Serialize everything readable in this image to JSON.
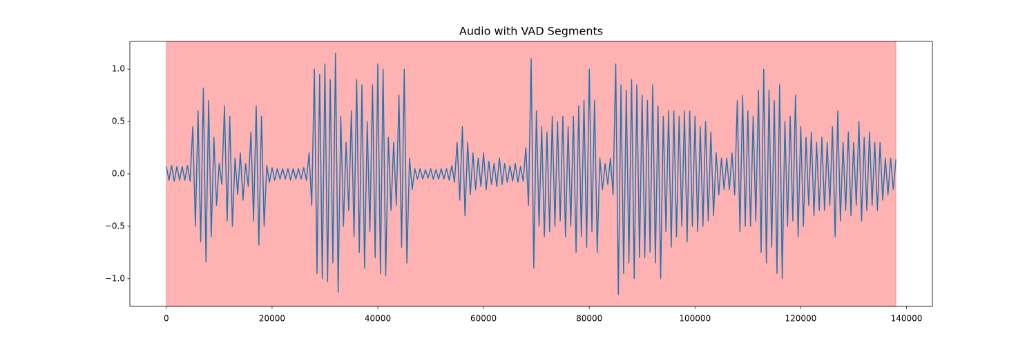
{
  "chart_data": {
    "type": "line",
    "title": "Audio with VAD Segments",
    "xlim": [
      -6900,
      144900
    ],
    "ylim": [
      -1.265,
      1.265
    ],
    "xticks": [
      0,
      20000,
      40000,
      60000,
      80000,
      100000,
      120000,
      140000
    ],
    "yticks": [
      {
        "value": -1.0,
        "label": "−1.0"
      },
      {
        "value": -0.5,
        "label": "−0.5"
      },
      {
        "value": 0.0,
        "label": "0.0"
      },
      0.5,
      {
        "value": 1.0,
        "label": "1.0"
      }
    ],
    "highlight": {
      "xmin": 0,
      "xmax": 138000,
      "color": "#ff0000",
      "alpha": 0.3
    },
    "x": [
      0,
      500,
      1000,
      1500,
      2000,
      2500,
      3000,
      3500,
      4000,
      4500,
      5000,
      5500,
      6000,
      6500,
      7000,
      7500,
      8000,
      8500,
      9000,
      9500,
      10000,
      10500,
      11000,
      11500,
      12000,
      12500,
      13000,
      13500,
      14000,
      14500,
      15000,
      15500,
      16000,
      16500,
      17000,
      17500,
      18000,
      18500,
      19000,
      19500,
      20000,
      20500,
      21000,
      21500,
      22000,
      22500,
      23000,
      23500,
      24000,
      24500,
      25000,
      25500,
      26000,
      26500,
      27000,
      27500,
      28000,
      28500,
      29000,
      29500,
      30000,
      30500,
      31000,
      31500,
      32000,
      32500,
      33000,
      33500,
      34000,
      34500,
      35000,
      35500,
      36000,
      36500,
      37000,
      37500,
      38000,
      38500,
      39000,
      39500,
      40000,
      40500,
      41000,
      41500,
      42000,
      42500,
      43000,
      43500,
      44000,
      44500,
      45000,
      45500,
      46000,
      46500,
      47000,
      47500,
      48000,
      48500,
      49000,
      49500,
      50000,
      50500,
      51000,
      51500,
      52000,
      52500,
      53000,
      53500,
      54000,
      54500,
      55000,
      55500,
      56000,
      56500,
      57000,
      57500,
      58000,
      58500,
      59000,
      59500,
      60000,
      60500,
      61000,
      61500,
      62000,
      62500,
      63000,
      63500,
      64000,
      64500,
      65000,
      65500,
      66000,
      66500,
      67000,
      67500,
      68000,
      68500,
      69000,
      69500,
      70000,
      70500,
      71000,
      71500,
      72000,
      72500,
      73000,
      73500,
      74000,
      74500,
      75000,
      75500,
      76000,
      76500,
      77000,
      77500,
      78000,
      78500,
      79000,
      79500,
      80000,
      80500,
      81000,
      81500,
      82000,
      82500,
      83000,
      83500,
      84000,
      84500,
      85000,
      85500,
      86000,
      86500,
      87000,
      87500,
      88000,
      88500,
      89000,
      89500,
      90000,
      90500,
      91000,
      91500,
      92000,
      92500,
      93000,
      93500,
      94000,
      94500,
      95000,
      95500,
      96000,
      96500,
      97000,
      97500,
      98000,
      98500,
      99000,
      99500,
      100000,
      100500,
      101000,
      101500,
      102000,
      102500,
      103000,
      103500,
      104000,
      104500,
      105000,
      105500,
      106000,
      106500,
      107000,
      107500,
      108000,
      108500,
      109000,
      109500,
      110000,
      110500,
      111000,
      111500,
      112000,
      112500,
      113000,
      113500,
      114000,
      114500,
      115000,
      115500,
      116000,
      116500,
      117000,
      117500,
      118000,
      118500,
      119000,
      119500,
      120000,
      120500,
      121000,
      121500,
      122000,
      122500,
      123000,
      123500,
      124000,
      124500,
      125000,
      125500,
      126000,
      126500,
      127000,
      127500,
      128000,
      128500,
      129000,
      129500,
      130000,
      130500,
      131000,
      131500,
      132000,
      132500,
      133000,
      133500,
      134000,
      134500,
      135000,
      135500,
      136000,
      136500,
      137000,
      137500,
      138000
    ],
    "series": [
      {
        "color": "#1f77b4",
        "values": [
          0.07,
          -0.06,
          0.08,
          -0.07,
          0.07,
          -0.06,
          0.07,
          -0.06,
          0.08,
          -0.07,
          0.45,
          -0.5,
          0.6,
          -0.65,
          0.82,
          -0.84,
          0.7,
          -0.6,
          0.35,
          -0.3,
          0.1,
          -0.1,
          0.65,
          -0.45,
          0.55,
          -0.5,
          0.15,
          -0.2,
          0.2,
          -0.25,
          0.1,
          -0.12,
          0.4,
          -0.45,
          0.65,
          -0.68,
          0.55,
          -0.5,
          0.08,
          -0.08,
          0.06,
          -0.06,
          0.05,
          -0.05,
          0.05,
          -0.05,
          0.05,
          -0.06,
          0.05,
          -0.05,
          0.05,
          -0.05,
          0.06,
          -0.06,
          0.2,
          -0.3,
          1.0,
          -0.95,
          0.95,
          -1.0,
          1.05,
          -1.03,
          0.9,
          -0.85,
          1.15,
          -1.13,
          0.55,
          -0.5,
          0.3,
          -0.35,
          0.6,
          -0.6,
          0.9,
          -0.75,
          0.85,
          -0.9,
          0.5,
          -0.55,
          0.85,
          -0.8,
          1.05,
          -0.95,
          1.0,
          -0.97,
          0.35,
          -0.35,
          0.3,
          -0.3,
          0.75,
          -0.7,
          1.0,
          -0.85,
          0.15,
          -0.15,
          0.05,
          -0.05,
          0.05,
          -0.05,
          0.04,
          -0.04,
          0.05,
          -0.05,
          0.04,
          -0.05,
          0.05,
          -0.05,
          0.05,
          -0.06,
          0.08,
          -0.08,
          0.3,
          -0.25,
          0.45,
          -0.4,
          0.3,
          -0.2,
          0.2,
          -0.15,
          0.15,
          -0.12,
          0.2,
          -0.15,
          0.12,
          -0.1,
          0.1,
          -0.12,
          0.15,
          -0.1,
          0.1,
          -0.08,
          0.08,
          -0.07,
          0.1,
          -0.08,
          0.07,
          -0.07,
          0.25,
          -0.3,
          1.1,
          -0.9,
          0.6,
          -0.5,
          0.45,
          -0.6,
          0.4,
          -0.55,
          0.55,
          -0.5,
          0.5,
          -0.45,
          0.55,
          -0.6,
          0.45,
          -0.5,
          0.55,
          -0.75,
          0.65,
          -0.6,
          0.7,
          -0.7,
          1.0,
          -0.55,
          0.7,
          -0.75,
          0.15,
          -0.15,
          0.1,
          -0.1,
          0.15,
          -0.2,
          1.05,
          -1.15,
          0.85,
          -0.95,
          0.8,
          -0.85,
          0.9,
          -1.0,
          0.85,
          -0.8,
          0.75,
          -0.8,
          0.7,
          -0.75,
          0.85,
          -0.85,
          0.65,
          -1.0,
          0.55,
          -0.55,
          0.6,
          -0.7,
          0.6,
          -0.6,
          0.55,
          -0.5,
          0.6,
          -0.65,
          0.6,
          -0.5,
          0.55,
          -0.55,
          0.45,
          -0.5,
          0.5,
          -0.45,
          0.4,
          -0.4,
          0.2,
          -0.2,
          0.15,
          -0.15,
          0.15,
          -0.15,
          0.2,
          -0.2,
          0.7,
          -0.55,
          0.75,
          -0.5,
          0.6,
          -0.5,
          0.55,
          -0.45,
          0.8,
          -0.75,
          1.0,
          -0.85,
          0.8,
          -0.7,
          0.7,
          -0.95,
          0.85,
          -1.0,
          0.5,
          -0.5,
          0.55,
          -0.45,
          0.75,
          -0.6,
          0.45,
          -0.5,
          0.35,
          -0.3,
          0.4,
          -0.4,
          0.3,
          -0.35,
          0.35,
          -0.35,
          0.3,
          -0.3,
          0.45,
          -0.6,
          0.6,
          -0.45,
          0.3,
          -0.35,
          0.4,
          -0.4,
          0.3,
          -0.3,
          0.5,
          -0.45,
          0.35,
          -0.35,
          0.4,
          -0.3,
          0.3,
          -0.35,
          0.3,
          -0.25,
          0.15,
          -0.2,
          0.15,
          -0.15,
          0.14
        ]
      }
    ]
  }
}
